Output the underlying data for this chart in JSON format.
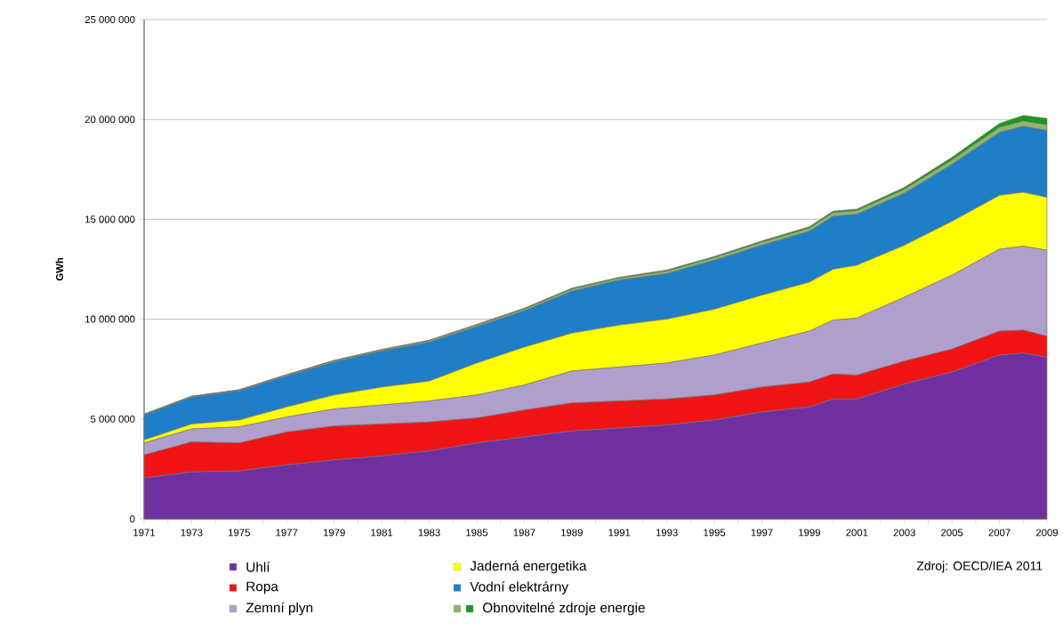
{
  "chart_data": {
    "type": "area",
    "stacked": true,
    "ylabel": "GWh",
    "grid": "y",
    "legend": "bottom",
    "x": [
      1971,
      1973,
      1975,
      1977,
      1979,
      1981,
      1983,
      1985,
      1987,
      1989,
      1991,
      1993,
      1995,
      1997,
      1999,
      2000,
      2001,
      2003,
      2005,
      2007,
      2008,
      2009
    ],
    "xlim": [
      1971,
      2009
    ],
    "xticks": [
      1971,
      {
        "value": 1972,
        "label": null
      },
      1973,
      {
        "value": 1974,
        "label": null
      },
      1975,
      {
        "value": 1976,
        "label": null
      },
      1977,
      {
        "value": 1978,
        "label": null
      },
      1979,
      {
        "value": 1980,
        "label": null
      },
      1981,
      {
        "value": 1982,
        "label": null
      },
      1983,
      {
        "value": 1984,
        "label": null
      },
      1985,
      {
        "value": 1986,
        "label": null
      },
      1987,
      {
        "value": 1988,
        "label": null
      },
      1989,
      {
        "value": 1990,
        "label": null
      },
      1991,
      {
        "value": 1992,
        "label": null
      },
      1993,
      {
        "value": 1994,
        "label": null
      },
      1995,
      {
        "value": 1996,
        "label": null
      },
      1997,
      {
        "value": 1998,
        "label": null
      },
      1999,
      {
        "value": 2000,
        "label": null
      },
      2001,
      {
        "value": 2002,
        "label": null
      },
      2003,
      {
        "value": 2004,
        "label": null
      },
      2005,
      {
        "value": 2006,
        "label": null
      },
      2007,
      {
        "value": 2008,
        "label": null
      },
      2009
    ],
    "ylim": [
      0,
      25000000
    ],
    "yticks": [
      0,
      {
        "value": 5000000,
        "label": "5 000 000"
      },
      {
        "value": 10000000,
        "label": "10 000 000"
      },
      {
        "value": 15000000,
        "label": "15 000 000"
      },
      {
        "value": 20000000,
        "label": "20 000 000"
      },
      {
        "value": 25000000,
        "label": "25 000 000"
      }
    ],
    "series": [
      {
        "name": "Uhlí",
        "color": "#7030a0",
        "values": [
          2050000,
          2350000,
          2400000,
          2700000,
          2950000,
          3150000,
          3400000,
          3800000,
          4100000,
          4400000,
          4550000,
          4700000,
          4950000,
          5350000,
          5600000,
          6000000,
          6000000,
          6750000,
          7350000,
          8200000,
          8300000,
          8100000
        ]
      },
      {
        "name": "Ropa",
        "color": "#f01414",
        "values": [
          1150000,
          1500000,
          1400000,
          1650000,
          1700000,
          1600000,
          1450000,
          1250000,
          1350000,
          1400000,
          1350000,
          1300000,
          1250000,
          1250000,
          1250000,
          1250000,
          1200000,
          1150000,
          1150000,
          1200000,
          1150000,
          1050000
        ]
      },
      {
        "name": "Zemní plyn",
        "color": "#b09fcc",
        "values": [
          600000,
          650000,
          800000,
          750000,
          850000,
          950000,
          1050000,
          1150000,
          1250000,
          1600000,
          1700000,
          1800000,
          2000000,
          2200000,
          2550000,
          2700000,
          2850000,
          3200000,
          3700000,
          4100000,
          4200000,
          4300000
        ]
      },
      {
        "name": "Jaderná energetika",
        "color": "#ffff00",
        "values": [
          150000,
          250000,
          350000,
          500000,
          700000,
          900000,
          1000000,
          1600000,
          1900000,
          1900000,
          2100000,
          2200000,
          2300000,
          2400000,
          2450000,
          2550000,
          2650000,
          2600000,
          2700000,
          2700000,
          2700000,
          2650000
        ]
      },
      {
        "name": "Vodní elektrárny",
        "color": "#1e7fc8",
        "values": [
          1250000,
          1330000,
          1450000,
          1550000,
          1650000,
          1800000,
          1950000,
          1820000,
          1820000,
          2100000,
          2250000,
          2280000,
          2450000,
          2500000,
          2550000,
          2650000,
          2550000,
          2600000,
          2850000,
          3150000,
          3300000,
          3350000
        ]
      },
      {
        "color": "#8fb46a",
        "values": [
          30000,
          40000,
          40000,
          50000,
          50000,
          50000,
          60000,
          70000,
          80000,
          100000,
          100000,
          120000,
          130000,
          150000,
          150000,
          180000,
          180000,
          200000,
          220000,
          250000,
          270000,
          280000
        ]
      },
      {
        "name": "Obnovitelné zdroje energie",
        "color": "#1a9a1a",
        "values": [
          20000,
          30000,
          30000,
          30000,
          40000,
          40000,
          40000,
          50000,
          50000,
          50000,
          50000,
          60000,
          60000,
          70000,
          80000,
          80000,
          80000,
          100000,
          130000,
          200000,
          280000,
          320000
        ]
      }
    ],
    "annotations": [
      "Zdroj: OECD/IEA 2011"
    ]
  }
}
